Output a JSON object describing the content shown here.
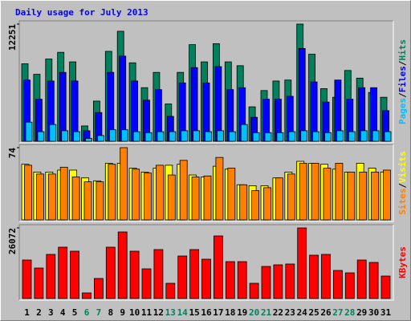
{
  "title": "Daily usage for July 2013",
  "categories": [
    "1",
    "2",
    "3",
    "4",
    "5",
    "6",
    "7",
    "8",
    "9",
    "10",
    "11",
    "12",
    "13",
    "14",
    "15",
    "16",
    "17",
    "18",
    "19",
    "20",
    "21",
    "22",
    "23",
    "24",
    "25",
    "26",
    "27",
    "28",
    "29",
    "30",
    "31"
  ],
  "category_colors": [
    "#000000",
    "#000000",
    "#000000",
    "#000000",
    "#000000",
    "#00805c",
    "#00805c",
    "#000000",
    "#000000",
    "#000000",
    "#000000",
    "#000000",
    "#00805c",
    "#00805c",
    "#000000",
    "#000000",
    "#000000",
    "#000000",
    "#000000",
    "#00805c",
    "#00805c",
    "#000000",
    "#000000",
    "#000000",
    "#000000",
    "#000000",
    "#00805c",
    "#00805c",
    "#000000",
    "#000000",
    "#000000"
  ],
  "chart_data": [
    {
      "type": "bar",
      "legend_separator": "/",
      "ylim": [
        0,
        12251
      ],
      "yticks": [
        12251
      ],
      "grid": false,
      "series": [
        {
          "name": "Hits",
          "color": "#00805c",
          "values": [
            8100,
            7000,
            8600,
            9300,
            8300,
            1600,
            4200,
            9400,
            11500,
            8200,
            5600,
            7200,
            3900,
            7200,
            10100,
            8300,
            10200,
            8300,
            7900,
            3600,
            5300,
            6300,
            6400,
            12251,
            9100,
            5500,
            4600,
            7400,
            6600,
            5100,
            4600
          ]
        },
        {
          "name": "Files",
          "color": "#0000ff",
          "values": [
            6400,
            4400,
            6300,
            7200,
            6300,
            1100,
            3000,
            7200,
            8900,
            6300,
            4300,
            5400,
            2600,
            6100,
            7700,
            6100,
            7800,
            5400,
            5600,
            2500,
            4400,
            4400,
            4700,
            9700,
            6200,
            4100,
            6400,
            4400,
            5600,
            5600,
            3200
          ]
        },
        {
          "name": "Pages",
          "color": "#00c0ff",
          "values": [
            2000,
            1000,
            1750,
            1100,
            1000,
            300,
            600,
            1200,
            1200,
            1000,
            900,
            1000,
            1000,
            1100,
            1100,
            1000,
            1100,
            1000,
            1750,
            900,
            900,
            900,
            1000,
            1100,
            1000,
            900,
            1100,
            1000,
            1100,
            1100,
            1000
          ]
        }
      ]
    },
    {
      "type": "bar",
      "legend_separator": "/",
      "ylim": [
        0,
        74
      ],
      "yticks": [
        74
      ],
      "grid": false,
      "series": [
        {
          "name": "Visits",
          "color": "#ffff00",
          "values": [
            57,
            49,
            49,
            51,
            51,
            43,
            40,
            58,
            58,
            53,
            49,
            53,
            56,
            57,
            46,
            44,
            55,
            52,
            36,
            35,
            35,
            43,
            49,
            60,
            58,
            57,
            52,
            49,
            58,
            53,
            49
          ]
        },
        {
          "name": "Sites",
          "color": "#ff8000",
          "values": [
            56,
            47,
            47,
            54,
            44,
            39,
            39,
            57,
            74,
            52,
            48,
            56,
            46,
            61,
            44,
            45,
            64,
            53,
            36,
            30,
            33,
            43,
            47,
            58,
            58,
            53,
            58,
            49,
            49,
            49,
            51
          ]
        }
      ]
    },
    {
      "type": "bar",
      "ylim": [
        0,
        26072
      ],
      "yticks": [
        26072
      ],
      "grid": false,
      "series": [
        {
          "name": "KBytes",
          "color": "#ff0000",
          "values": [
            14221,
            11258,
            16295,
            18961,
            17480,
            2074,
            7407,
            18961,
            24590,
            17480,
            10962,
            18073,
            5629,
            15702,
            18073,
            14517,
            23109,
            13628,
            13628,
            5629,
            11851,
            12443,
            12740,
            26072,
            15999,
            16295,
            10369,
            9481,
            14221,
            13332,
            8296
          ]
        }
      ]
    }
  ]
}
